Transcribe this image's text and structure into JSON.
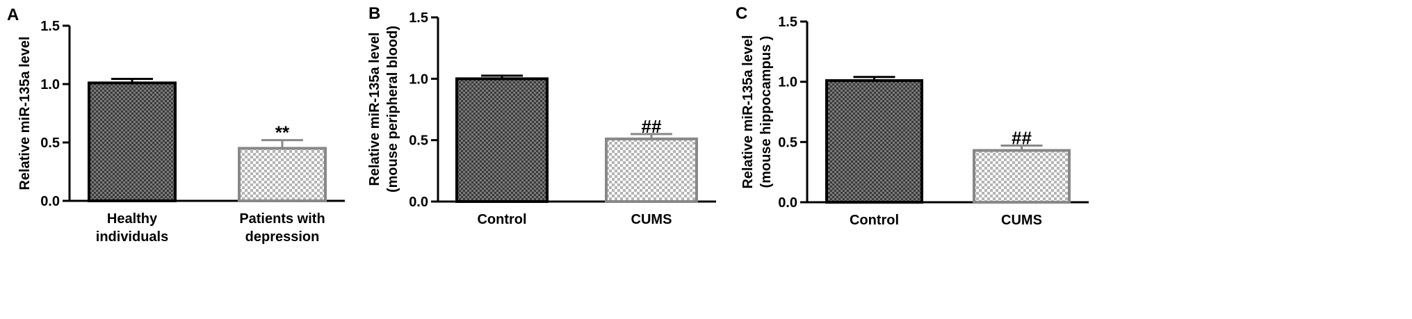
{
  "chart_data": [
    {
      "type": "bar",
      "panel_label": "A",
      "ylabel_lines": [
        "Relative miR-135a level"
      ],
      "categories": [
        [
          "Healthy",
          "individuals"
        ],
        [
          "Patients with",
          "depression"
        ]
      ],
      "values": [
        1.01,
        0.45
      ],
      "errors": [
        0.035,
        0.07
      ],
      "annotations": [
        "",
        "**"
      ],
      "ylim": [
        0,
        1.5
      ],
      "yticks": [
        "0.0",
        "0.5",
        "1.0",
        "1.5"
      ],
      "grid": false,
      "bar_colors": [
        "#000000",
        "#888888"
      ]
    },
    {
      "type": "bar",
      "panel_label": "B",
      "ylabel_lines": [
        "Relative miR-135a level",
        "(mouse peripheral blood)"
      ],
      "categories": [
        [
          "Control"
        ],
        [
          "CUMS"
        ]
      ],
      "values": [
        1.0,
        0.51
      ],
      "errors": [
        0.025,
        0.04
      ],
      "annotations": [
        "",
        "##"
      ],
      "ylim": [
        0,
        1.5
      ],
      "yticks": [
        "0.0",
        "0.5",
        "1.0",
        "1.5"
      ],
      "grid": false,
      "bar_colors": [
        "#000000",
        "#888888"
      ]
    },
    {
      "type": "bar",
      "panel_label": "C",
      "ylabel_lines": [
        "Relative miR-135a level",
        "(mouse hippocampus )"
      ],
      "categories": [
        [
          "Control"
        ],
        [
          "CUMS"
        ]
      ],
      "values": [
        1.01,
        0.43
      ],
      "errors": [
        0.03,
        0.04
      ],
      "annotations": [
        "",
        "##"
      ],
      "ylim": [
        0,
        1.5
      ],
      "yticks": [
        "0.0",
        "0.5",
        "1.0",
        "1.5"
      ],
      "grid": false,
      "bar_colors": [
        "#000000",
        "#888888"
      ]
    }
  ]
}
